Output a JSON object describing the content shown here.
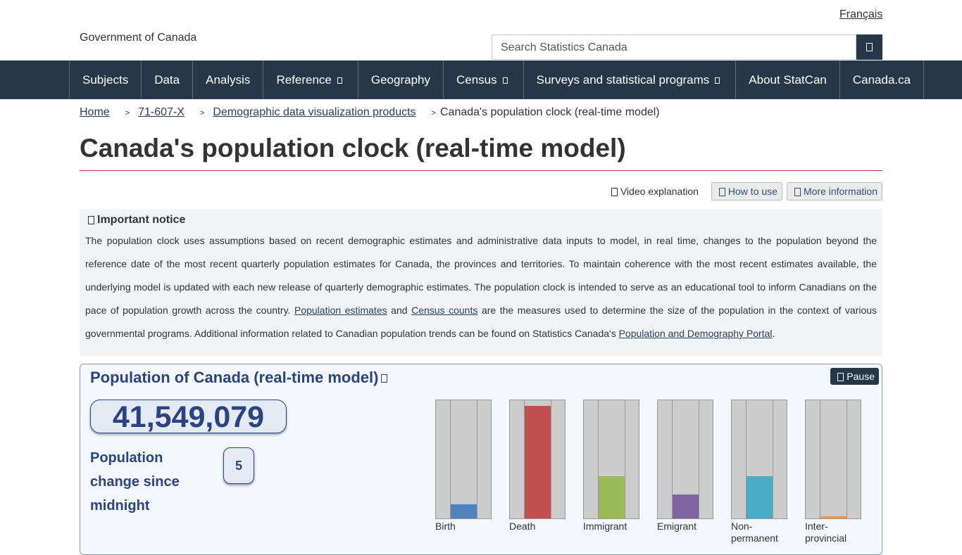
{
  "header": {
    "language_link": "Français",
    "logo_alt": "Government of Canada",
    "search_placeholder": "Search Statistics Canada"
  },
  "nav": [
    {
      "label": "Subjects",
      "menu": false
    },
    {
      "label": "Data",
      "menu": false
    },
    {
      "label": "Analysis",
      "menu": false
    },
    {
      "label": "Reference",
      "menu": true
    },
    {
      "label": "Geography",
      "menu": false
    },
    {
      "label": "Census",
      "menu": true
    },
    {
      "label": "Surveys and statistical programs",
      "menu": true
    },
    {
      "label": "About StatCan",
      "menu": false
    },
    {
      "label": "Canada.ca",
      "menu": false
    }
  ],
  "breadcrumb": {
    "links": [
      "Home",
      "71-607-X",
      "Demographic data visualization products"
    ],
    "current": "Canada's population clock (real-time model)"
  },
  "title": "Canada's population clock (real-time model)",
  "actions": {
    "video": "Video explanation",
    "buttons": [
      "How to use",
      "More information"
    ]
  },
  "notice": {
    "heading": "Important notice",
    "text": [
      "The population clock uses assumptions based on recent demographic estimates and administrative data inputs to model, in real time, changes to the population beyond the reference date of the most recent quarterly population estimates for Canada, the provinces and territories. To maintain coherence with the most recent estimates available, the underlying model is updated with each new release of quarterly demographic estimates. The population clock is intended to serve as an educational tool to inform Canadians on the pace of population growth across the country.",
      "and",
      "are the measures used to determine the size of the population in the context of various governmental programs. Additional information related to Canadian population trends can be found on Statistics Canada's",
      "."
    ],
    "links": [
      "Population estimates",
      "Census counts",
      "Population and Demography Portal"
    ]
  },
  "clock": {
    "title": "Population of Canada (real-time model)",
    "pause": "Pause",
    "population": "41,549,079",
    "change_label": "Population change since midnight",
    "change": "5",
    "gauges": [
      {
        "label": "Birth",
        "fill": 12,
        "color": "#4f81bd"
      },
      {
        "label": "Death",
        "fill": 95,
        "color": "#c0504d"
      },
      {
        "label": "Immigrant",
        "fill": 36,
        "color": "#9bbb59"
      },
      {
        "label": "Emigrant",
        "fill": 20,
        "color": "#8064a2"
      },
      {
        "label": "Non-permanent",
        "fill": 36,
        "color": "#4bacc6"
      },
      {
        "label": "Inter-provincial",
        "fill": 2,
        "color": "#f79646"
      }
    ]
  }
}
